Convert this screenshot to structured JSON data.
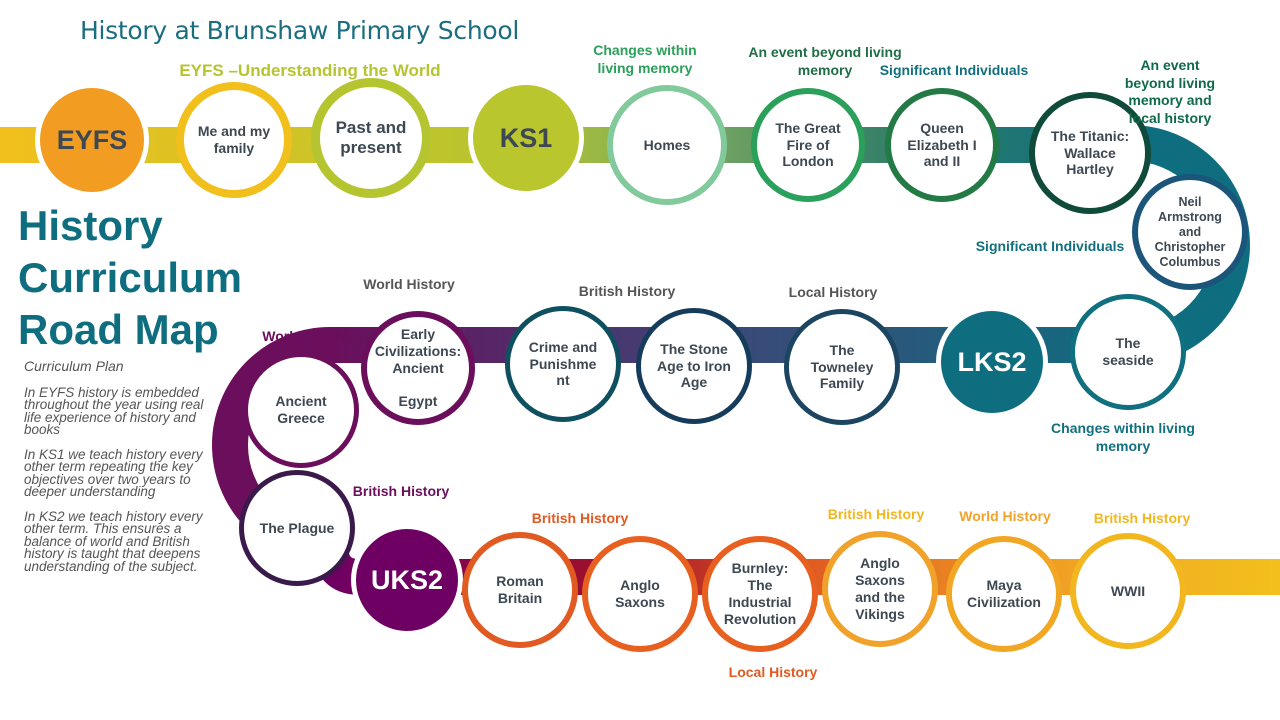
{
  "header": {
    "school_title": "History at Brunshaw Primary School",
    "main_title": "History\nCurriculum\nRoad Map"
  },
  "plan": {
    "heading": "Curriculum Plan",
    "paragraphs": [
      "In EYFS history is embedded throughout the year using real life experience of history and books",
      "In KS1 we teach history every other term repeating the key objectives over two years to deeper understanding",
      "In KS2 we teach  history every other term. This ensures a balance of world and British history is taught that deepens understanding of the subject."
    ]
  },
  "circles": [
    {
      "label": "EYFS",
      "color": "#f29c22",
      "filled": true,
      "text_color": "#3d4852"
    },
    {
      "label": "Me and my\nfamily",
      "color": "#f2c01c"
    },
    {
      "label": "Past and\npresent",
      "color": "#b5c52f",
      "big": true
    },
    {
      "label": "KS1",
      "color": "#b9c62e",
      "filled": true,
      "text_color": "#3d4852"
    },
    {
      "label": "Homes",
      "color": "#82c99c"
    },
    {
      "label": "The Great\nFire of\nLondon",
      "color": "#2aa05a"
    },
    {
      "label": "Queen\nElizabeth I\nand II",
      "color": "#237a45"
    },
    {
      "label": "The Titanic:\nWallace\nHartley",
      "color": "#0f4a3a"
    },
    {
      "label": "Neil\nArmstrong\nand\nChristopher\nColumbus",
      "color": "#1b557a"
    },
    {
      "label": "The\nseaside",
      "color": "#11707f"
    },
    {
      "label": "LKS2",
      "color": "#0e6e80",
      "filled": true,
      "text_color": "#ffffff"
    },
    {
      "label": "The\nTowneley\nFamily",
      "color": "#1b4560"
    },
    {
      "label": "The Stone\nAge to Iron\nAge",
      "color": "#163c5c"
    },
    {
      "label": "Crime and\nPunishme\nnt",
      "color": "#0f5060"
    },
    {
      "label": "Early\nCivilizations:\nAncient\n\nEgypt",
      "color": "#6b0e5c"
    },
    {
      "label": "Ancient\nGreece",
      "color": "#6b0e5c"
    },
    {
      "label": "The Plague",
      "color": "#3a1a4a"
    },
    {
      "label": "UKS2",
      "color": "#6e0063",
      "filled": true,
      "text_color": "#ffffff"
    },
    {
      "label": "Roman\nBritain",
      "color": "#e05a22"
    },
    {
      "label": "Anglo\nSaxons",
      "color": "#e8601f"
    },
    {
      "label": "Burnley:\nThe\nIndustrial\nRevolution",
      "color": "#e8601f"
    },
    {
      "label": "Anglo\nSaxons\nand the\nVikings",
      "color": "#f0a22a"
    },
    {
      "label": "Maya\nCivilization",
      "color": "#f2a724"
    },
    {
      "label": "WWII",
      "color": "#f2b71f"
    }
  ],
  "topic_labels": [
    {
      "text": "EYFS –Understanding the World",
      "color": "#b5c52f"
    },
    {
      "text": "Changes within\nliving memory",
      "color": "#2aa05a"
    },
    {
      "text": "An event beyond living\nmemory",
      "color": "#1f6e45"
    },
    {
      "text": "Significant Individuals",
      "color": "#11707f"
    },
    {
      "text": "An event beyond living\nmemory and local history",
      "color": "#0f6a4a"
    },
    {
      "text": "Significant Individuals",
      "color": "#11707f"
    },
    {
      "text": "Changes within living memory",
      "color": "#11707f"
    },
    {
      "text": "Local History",
      "color": "#555555"
    },
    {
      "text": "British History",
      "color": "#555555"
    },
    {
      "text": "World History",
      "color": "#555555"
    },
    {
      "text": "World History",
      "color": "#6b0e5c"
    },
    {
      "text": "British History",
      "color": "#6b0e5c"
    },
    {
      "text": "British History",
      "color": "#e05a22"
    },
    {
      "text": "Local History",
      "color": "#e05a22"
    },
    {
      "text": "British History",
      "color": "#f2b71f"
    },
    {
      "text": "World History",
      "color": "#f0a22a"
    },
    {
      "text": "British History",
      "color": "#f2b71f"
    }
  ]
}
